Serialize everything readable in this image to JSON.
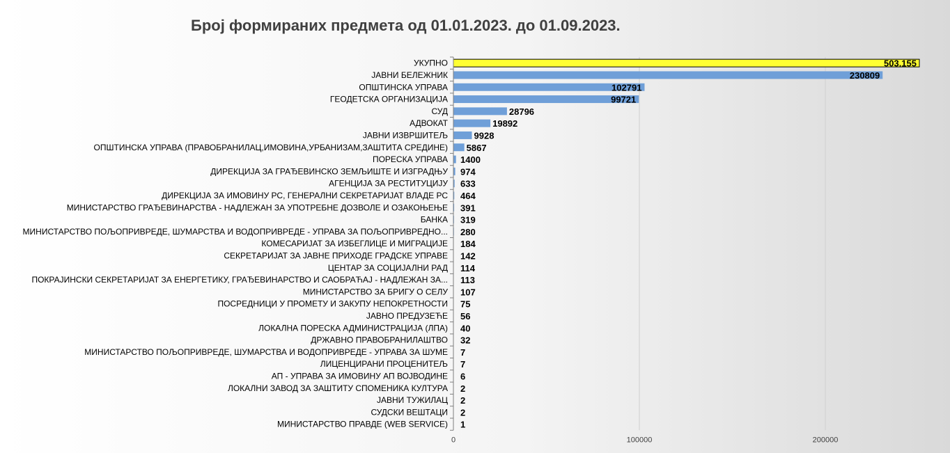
{
  "chart_data": {
    "type": "bar",
    "orientation": "horizontal",
    "title": "Број формираних предмета од 01.01.2023. до 01.09.2023.",
    "xlabel": "",
    "ylabel": "",
    "xlim": [
      0,
      250000
    ],
    "x_ticks": [
      0,
      100000,
      200000
    ],
    "x_tick_labels": [
      "0",
      "100000",
      "200000"
    ],
    "grid": "vertical",
    "legend": "none",
    "bar_color": "#6f9fd8",
    "highlight_color": "#ffff33",
    "categories": [
      "УКУПНО",
      "ЈАВНИ БЕЛЕЖНИК",
      "ОПШТИНСКА УПРАВА",
      "ГЕОДЕТСКА ОРГАНИЗАЦИЈА",
      "СУД",
      "АДВОКАТ",
      "ЈАВНИ ИЗВРШИТЕЉ",
      "ОПШТИНСКА УПРАВА (ПРАВОБРАНИЛАЦ,ИМОВИНА,УРБАНИЗАМ,ЗАШТИТА СРЕДИНЕ)",
      "ПОРЕСКА УПРАВА",
      "ДИРЕКЦИЈА ЗА ГРАЂЕВИНСКО ЗЕМЉИШТЕ И ИЗГРАДЊУ",
      "АГЕНЦИЈА ЗА РЕСТИТУЦИЈУ",
      "ДИРЕКЦИЈА ЗА ИМОВИНУ РС, ГЕНЕРАЛНИ СЕКРЕТАРИЈАТ ВЛАДЕ РС",
      "МИНИСТАРСТВО ГРАЂЕВИНАРСТВА - НАДЛЕЖАН ЗА УПОТРЕБНЕ ДОЗВОЛЕ И ОЗАКОЊЕЊЕ",
      "БАНКА",
      "МИНИСТАРСТВО ПОЉОПРИВРЕДЕ, ШУМАРСТВА И ВОДОПРИВРЕДЕ - УПРАВА ЗА ПОЉОПРИВРЕДНО...",
      "КОМЕСАРИЈАТ ЗА ИЗБЕГЛИЦЕ И МИГРАЦИЈЕ",
      "СЕКРЕТАРИЈАТ ЗА ЈАВНЕ ПРИХОДЕ ГРАДСКЕ УПРАВЕ",
      "ЦЕНТАР ЗА СОЦИЈАЛНИ РАД",
      "ПОКРАЈИНСКИ СЕКРЕТАРИЈАТ ЗА ЕНЕРГЕТИКУ, ГРАЂЕВИНАРСТВО И САОБРАЋАЈ - НАДЛЕЖАН ЗА...",
      "МИНИСТАРСТВО ЗА БРИГУ О СЕЛУ",
      "ПОСРЕДНИЦИ У ПРОМЕТУ И ЗАКУПУ НЕПОКРЕТНОСТИ",
      "ЈАВНО ПРЕДУЗЕЋЕ",
      "ЛОКАЛНА ПОРЕСКА АДМИНИСТРАЦИЈА (ЛПА)",
      "ДРЖАВНО ПРАВОБРАНИЛАШТВО",
      "МИНИСТАРСТВО ПОЉОПРИВРЕДЕ, ШУМАРСТВА И ВОДОПРИВРЕДЕ - УПРАВА ЗА ШУМЕ",
      "ЛИЦЕНЦИРАНИ ПРОЦЕНИТЕЉ",
      "АП - УПРАВА ЗА ИМОВИНУ АП ВОЈВОДИНЕ",
      "ЛОКАЛНИ ЗАВОД ЗА ЗАШТИТУ СПОМЕНИКА КУЛТУРА",
      "ЈАВНИ ТУЖИЛАЦ",
      "СУДСКИ ВЕШТАЦИ",
      "МИНИСТАРСТВО ПРАВДЕ (WEB SERVICE)"
    ],
    "values": [
      503155,
      230809,
      102791,
      99721,
      28796,
      19892,
      9928,
      5867,
      1400,
      974,
      633,
      464,
      391,
      319,
      280,
      184,
      142,
      114,
      113,
      107,
      75,
      56,
      40,
      32,
      7,
      7,
      6,
      2,
      2,
      2,
      1
    ],
    "value_labels": [
      "503.155",
      "230809",
      "102791",
      "99721",
      "28796",
      "19892",
      "9928",
      "5867",
      "1400",
      "974",
      "633",
      "464",
      "391",
      "319",
      "280",
      "184",
      "142",
      "114",
      "113",
      "107",
      "75",
      "56",
      "40",
      "32",
      "7",
      "7",
      "6",
      "2",
      "2",
      "2",
      "1"
    ],
    "bar_truncated_at_axis_max": [
      true,
      false,
      false,
      false,
      false,
      false,
      false,
      false,
      false,
      false,
      false,
      false,
      false,
      false,
      false,
      false,
      false,
      false,
      false,
      false,
      false,
      false,
      false,
      false,
      false,
      false,
      false,
      false,
      false,
      false,
      false
    ],
    "highlight_index": 0
  }
}
